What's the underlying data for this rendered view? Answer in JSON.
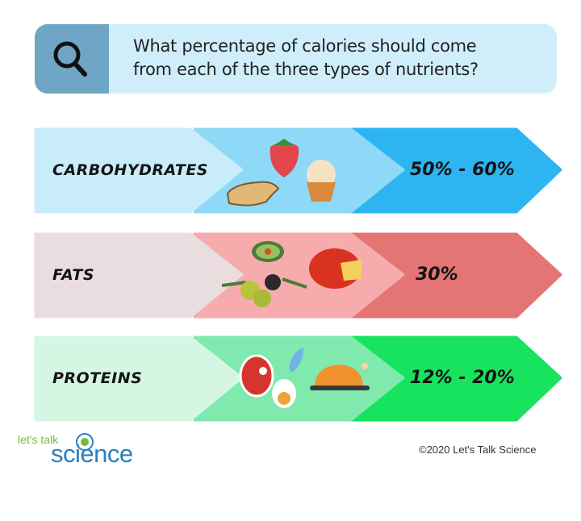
{
  "question": {
    "line1": "What percentage of calories should come",
    "line2": "from each of the three types of nutrients?",
    "icon": "search-icon"
  },
  "rows": [
    {
      "label": "CARBOHYDRATES",
      "percent": "50% - 60%",
      "colors": [
        "#c9ecfb",
        "#8fd9f8",
        "#2db5f2"
      ],
      "foods": [
        "strawberry",
        "bread",
        "cupcake"
      ]
    },
    {
      "label": "FATS",
      "percent": "30%",
      "colors": [
        "#e9dde0",
        "#f6abac",
        "#e57475"
      ],
      "foods": [
        "avocado",
        "olives",
        "cheese"
      ]
    },
    {
      "label": "PROTEINS",
      "percent": "12% - 20%",
      "colors": [
        "#d4f6e3",
        "#80e9ae",
        "#17e35f"
      ],
      "foods": [
        "steak",
        "egg",
        "fish",
        "roast-chicken"
      ]
    }
  ],
  "logo": {
    "top": "let's talk",
    "bottom": "science"
  },
  "copyright": "©2020 Let's Talk Science"
}
